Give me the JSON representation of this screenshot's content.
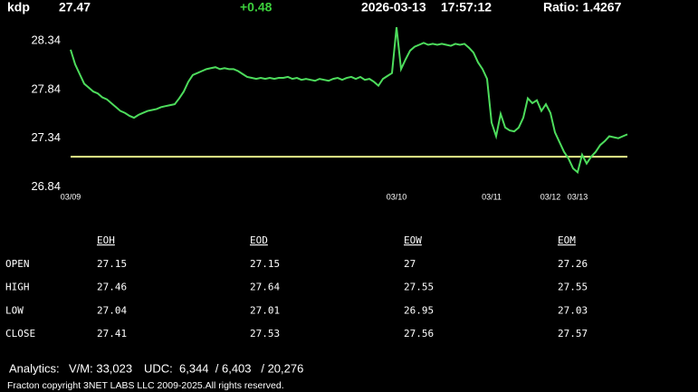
{
  "header": {
    "symbol": "kdp",
    "price": "27.47",
    "change": "+0.48",
    "date": "2026-03-13",
    "time": "17:57:12",
    "ratio": "Ratio: 1.4267"
  },
  "chart_data": {
    "type": "line",
    "x": [
      0,
      1,
      2,
      3,
      4,
      5,
      6,
      7,
      8,
      9,
      10,
      11,
      12,
      13,
      14,
      15,
      16,
      17,
      18,
      19,
      20,
      21,
      22,
      23,
      24,
      25,
      26,
      27,
      28,
      29,
      30,
      31,
      32,
      33,
      34,
      35,
      36,
      37,
      38,
      39,
      40,
      41,
      42,
      43,
      44,
      45,
      46,
      47,
      48,
      49,
      50,
      51,
      52,
      53,
      54,
      55,
      56,
      57,
      58,
      59,
      60,
      61,
      62,
      63,
      64,
      65,
      66,
      67,
      68,
      69,
      70,
      71,
      72,
      73,
      74,
      75,
      76,
      77,
      78,
      79,
      80,
      81,
      82,
      83,
      84,
      85,
      86,
      87,
      88,
      89,
      90,
      91,
      92,
      93,
      94,
      95,
      96,
      97,
      98,
      99,
      100,
      101,
      102,
      103,
      104,
      105,
      106,
      107,
      108,
      109,
      110,
      111,
      112,
      113,
      114,
      115,
      116,
      117,
      118,
      119,
      120,
      121,
      122,
      123
    ],
    "series": [
      {
        "color": "#4ddc5c",
        "values": [
          28.25,
          28.1,
          28.0,
          27.9,
          27.86,
          27.82,
          27.8,
          27.76,
          27.74,
          27.7,
          27.66,
          27.62,
          27.6,
          27.57,
          27.55,
          27.58,
          27.6,
          27.62,
          27.63,
          27.64,
          27.66,
          27.67,
          27.68,
          27.69,
          27.75,
          27.82,
          27.92,
          27.99,
          28.01,
          28.03,
          28.05,
          28.06,
          28.07,
          28.05,
          28.06,
          28.05,
          28.05,
          28.03,
          28.0,
          27.97,
          27.96,
          27.95,
          27.96,
          27.95,
          27.96,
          27.95,
          27.96,
          27.96,
          27.97,
          27.95,
          27.96,
          27.94,
          27.95,
          27.94,
          27.93,
          27.95,
          27.94,
          27.93,
          27.95,
          27.96,
          27.94,
          27.96,
          27.97,
          27.95,
          27.97,
          27.94,
          27.95,
          27.92,
          27.88,
          27.95,
          27.98,
          28.01,
          28.48,
          28.05,
          28.15,
          28.24,
          28.28,
          28.3,
          28.32,
          28.3,
          28.31,
          28.3,
          28.31,
          28.3,
          28.29,
          28.31,
          28.3,
          28.31,
          28.27,
          28.22,
          28.12,
          28.05,
          27.95,
          27.5,
          27.36,
          27.59,
          27.45,
          27.42,
          27.41,
          27.45,
          27.55,
          27.75,
          27.7,
          27.73,
          27.62,
          27.69,
          27.6,
          27.4,
          27.3,
          27.2,
          27.13,
          27.03,
          26.99,
          27.17,
          27.08,
          27.15,
          27.2,
          27.27,
          27.31,
          27.36,
          27.35,
          27.34,
          27.36,
          27.38
        ]
      }
    ],
    "xlim": [
      0,
      123
    ],
    "xticks": [
      {
        "value": 0,
        "label": "03/09"
      },
      {
        "value": 72,
        "label": "03/10"
      },
      {
        "value": 93,
        "label": "03/11"
      },
      {
        "value": 106,
        "label": "03/12"
      },
      {
        "value": 112,
        "label": "03/13"
      }
    ],
    "ylim": [
      26.76,
      28.5
    ],
    "yticks": [
      26.84,
      27.34,
      27.84,
      28.34
    ],
    "reference_line": {
      "value": 27.15,
      "color": "#e6f08a"
    }
  },
  "table": {
    "columns": [
      "EOH",
      "EOD",
      "EOW",
      "EOM"
    ],
    "rows": [
      {
        "label": "OPEN",
        "values": [
          27.15,
          27.15,
          27,
          27.26
        ]
      },
      {
        "label": "HIGH",
        "values": [
          27.46,
          27.64,
          27.55,
          27.55
        ]
      },
      {
        "label": "LOW",
        "values": [
          27.04,
          27.01,
          26.95,
          27.03
        ]
      },
      {
        "label": "CLOSE",
        "values": [
          27.41,
          27.53,
          27.56,
          27.57
        ]
      }
    ]
  },
  "footer": {
    "analytics": "Analytics:",
    "vm": "V/M: 33,023",
    "udc": "UDC:  6,344  / 6,403   / 20,276",
    "copyright": "Fracton copyright 3NET LABS LLC 2009-2025.All rights reserved."
  }
}
